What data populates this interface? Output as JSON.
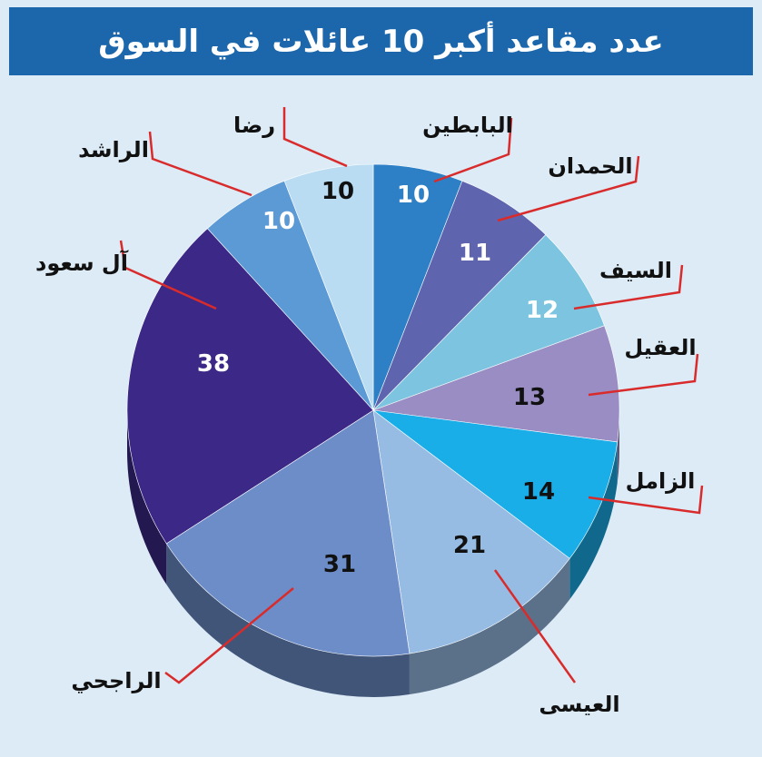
{
  "title": "عدد مقاعد أكبر 10 عائلات في السوق",
  "chart_data": {
    "type": "pie",
    "title": "عدد مقاعد أكبر 10 عائلات في السوق",
    "slices": [
      {
        "label": "البابطين",
        "value": 10,
        "color": "#2e80c6",
        "text_color": "#ffffff"
      },
      {
        "label": "الحمدان",
        "value": 11,
        "color": "#5e65ae",
        "text_color": "#ffffff"
      },
      {
        "label": "السيف",
        "value": 12,
        "color": "#7cc4df",
        "text_color": "#ffffff"
      },
      {
        "label": "العقيل",
        "value": 13,
        "color": "#998dc3",
        "text_color": "#111111"
      },
      {
        "label": "الزامل",
        "value": 14,
        "color": "#1aaee9",
        "text_color": "#111111"
      },
      {
        "label": "العيسى",
        "value": 21,
        "color": "#97bce4",
        "text_color": "#111111"
      },
      {
        "label": "الراجحي",
        "value": 31,
        "color": "#6d8dc9",
        "text_color": "#111111"
      },
      {
        "label": "آل سعود",
        "value": 38,
        "color": "#3c2886",
        "text_color": "#ffffff"
      },
      {
        "label": "الراشد",
        "value": 10,
        "color": "#5c9ad6",
        "text_color": "#ffffff"
      },
      {
        "label": "رضا",
        "value": 10,
        "color": "#b9dcf3",
        "text_color": "#111111"
      }
    ],
    "leader_color": "#d92b2b"
  }
}
